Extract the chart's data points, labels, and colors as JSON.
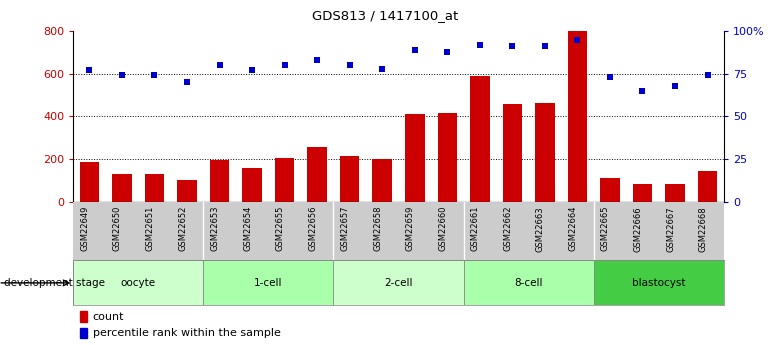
{
  "title": "GDS813 / 1417100_at",
  "samples": [
    "GSM22649",
    "GSM22650",
    "GSM22651",
    "GSM22652",
    "GSM22653",
    "GSM22654",
    "GSM22655",
    "GSM22656",
    "GSM22657",
    "GSM22658",
    "GSM22659",
    "GSM22660",
    "GSM22661",
    "GSM22662",
    "GSM22663",
    "GSM22664",
    "GSM22665",
    "GSM22666",
    "GSM22667",
    "GSM22668"
  ],
  "counts": [
    185,
    130,
    130,
    100,
    195,
    160,
    205,
    255,
    215,
    200,
    410,
    415,
    590,
    460,
    465,
    800,
    110,
    85,
    85,
    145
  ],
  "percentiles": [
    77,
    74,
    74,
    70,
    80,
    77,
    80,
    83,
    80,
    78,
    89,
    88,
    92,
    91,
    91,
    95,
    73,
    65,
    68,
    74
  ],
  "stages": [
    {
      "name": "oocyte",
      "start": 0,
      "end": 4,
      "color": "#ccffcc"
    },
    {
      "name": "1-cell",
      "start": 4,
      "end": 8,
      "color": "#aaffaa"
    },
    {
      "name": "2-cell",
      "start": 8,
      "end": 12,
      "color": "#ccffcc"
    },
    {
      "name": "8-cell",
      "start": 12,
      "end": 16,
      "color": "#aaffaa"
    },
    {
      "name": "blastocyst",
      "start": 16,
      "end": 20,
      "color": "#44cc44"
    }
  ],
  "bar_color": "#cc0000",
  "dot_color": "#0000cc",
  "left_ylim": [
    0,
    800
  ],
  "right_ylim": [
    0,
    100
  ],
  "left_yticks": [
    0,
    200,
    400,
    600,
    800
  ],
  "right_yticks": [
    0,
    25,
    50,
    75,
    100
  ],
  "right_yticklabels": [
    "0",
    "25",
    "50",
    "75",
    "100%"
  ],
  "grid_values": [
    200,
    400,
    600
  ],
  "xlabel_left": "development stage",
  "legend_count_label": "count",
  "legend_pct_label": "percentile rank within the sample",
  "sample_bg_color": "#cccccc",
  "figure_bg_color": "#ffffff"
}
